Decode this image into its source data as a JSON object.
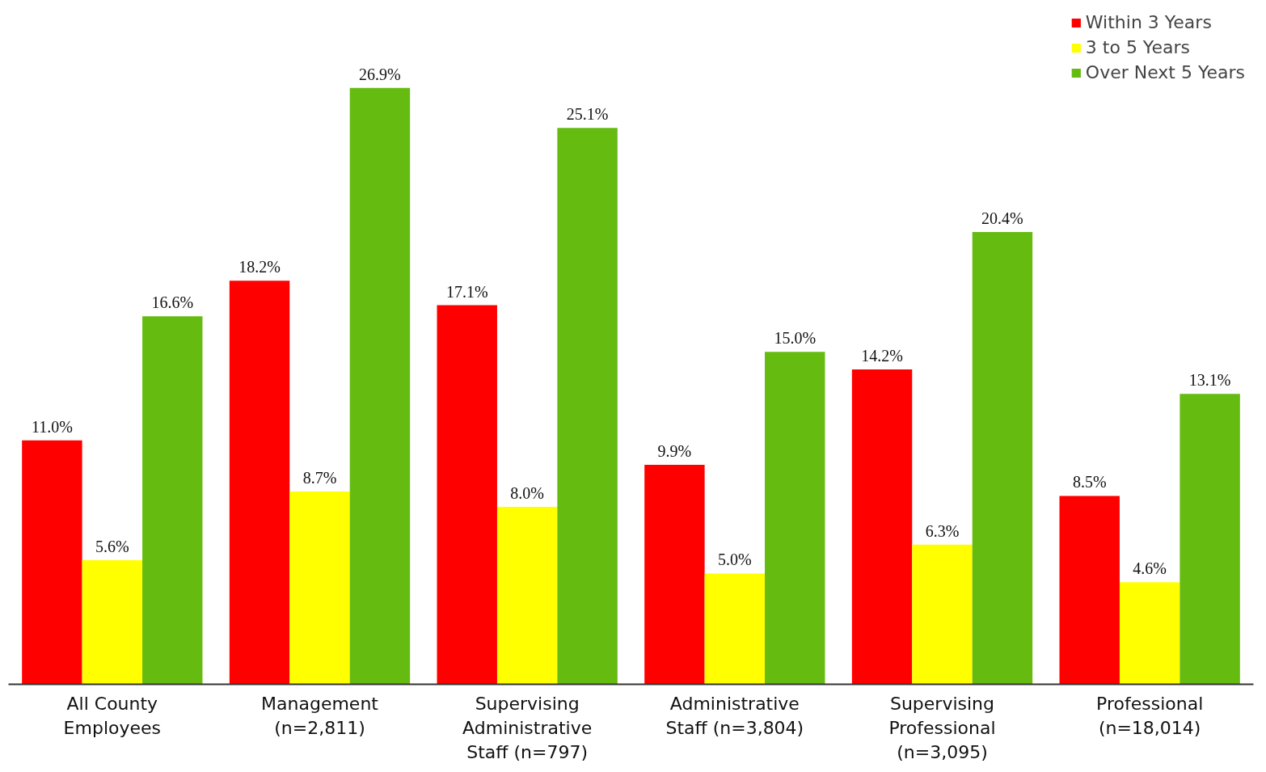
{
  "chart_data": {
    "type": "bar",
    "categories": [
      "All County\nEmployees",
      "Management\n(n=2,811)",
      "Supervising\nAdministrative\nStaff (n=797)",
      "Administrative\nStaff (n=3,804)",
      "Supervising\nProfessional\n(n=3,095)",
      "Professional\n(n=18,014)"
    ],
    "series": [
      {
        "name": "Within 3 Years",
        "color": "#ff0000",
        "values": [
          11.0,
          18.2,
          17.1,
          9.9,
          14.2,
          8.5
        ],
        "value_labels": [
          "11.0%",
          "18.2%",
          "17.1%",
          "9.9%",
          "14.2%",
          "8.5%"
        ]
      },
      {
        "name": "3 to 5 Years",
        "color": "#ffff00",
        "values": [
          5.6,
          8.7,
          8.0,
          5.0,
          6.3,
          4.6
        ],
        "value_labels": [
          "5.6%",
          "8.7%",
          "8.0%",
          "5.0%",
          "6.3%",
          "4.6%"
        ]
      },
      {
        "name": "Over Next 5 Years",
        "color": "#66bb11",
        "values": [
          16.6,
          26.9,
          25.1,
          15.0,
          20.4,
          13.1
        ],
        "value_labels": [
          "16.6%",
          "26.9%",
          "25.1%",
          "15.0%",
          "20.4%",
          "13.1%"
        ]
      }
    ],
    "legend": "top right",
    "tick_labels": "x"
  }
}
